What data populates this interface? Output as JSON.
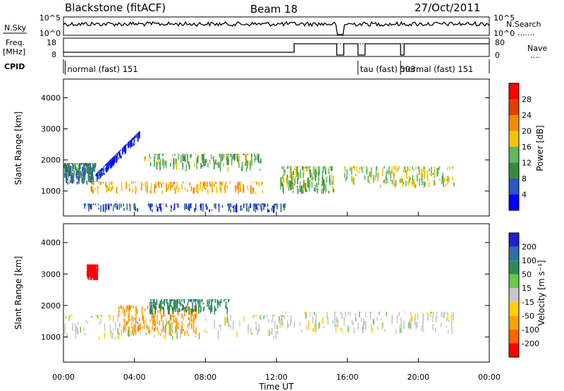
{
  "header": {
    "radar": "Blackstone (fitACF)",
    "beam": "Beam 18",
    "date": "27/Oct/2011"
  },
  "top_panels": {
    "noise_left": "N.Sky",
    "noise_right": "N.Search",
    "noise_ticks": [
      "10^5",
      "10^0"
    ],
    "freq_left_1": "Freq.",
    "freq_left_2": "[MHz]",
    "freq_ticks": [
      "18",
      "8"
    ],
    "nave_right": "Nave",
    "nave_ticks": [
      "80",
      "0"
    ],
    "cpid_label": "CPID"
  },
  "modes": [
    {
      "label": "normal (fast) 151",
      "start_h": 0.1
    },
    {
      "label": "tau (fast) 503",
      "start_h": 16.6
    },
    {
      "label": "normal (fast) 151",
      "start_h": 19.0
    }
  ],
  "colors": {
    "power": [
      "#0000ff",
      "#2a58c0",
      "#3a8a3a",
      "#5fb85f",
      "#f5c400",
      "#f08c00",
      "#e04000",
      "#ff0000"
    ],
    "velocity": [
      "#ff0000",
      "#ff6400",
      "#ffa000",
      "#ffd100",
      "#c8c8c8",
      "#6ac84a",
      "#2e8b57",
      "#2e70b0",
      "#2020d0"
    ]
  },
  "chart_data": [
    {
      "type": "heatmap",
      "name": "power",
      "xlabel": "Time UT",
      "ylabel": "Slant Range [km]",
      "x_ticks": [
        "00:00",
        "04:00",
        "08:00",
        "12:00",
        "16:00",
        "20:00",
        "00:00"
      ],
      "y_ticks": [
        "1000",
        "2000",
        "3000",
        "4000"
      ],
      "xlim": [
        0,
        24
      ],
      "ylim": [
        200,
        4600
      ],
      "colorbar": {
        "label": "Power [dB]",
        "ticks": [
          "4",
          "8",
          "12",
          "16",
          "20",
          "24",
          "28"
        ],
        "range": [
          0,
          32
        ]
      },
      "features": [
        {
          "desc": "early band",
          "t": [
            0.0,
            1.8
          ],
          "r": [
            1200,
            1900
          ],
          "level": 10
        },
        {
          "desc": "rising streak",
          "t": [
            1.8,
            4.3
          ],
          "r_start": 1400,
          "r_end": 2800,
          "level": 6
        },
        {
          "desc": "strong main band",
          "t": [
            1.5,
            11.2
          ],
          "r": [
            900,
            1300
          ],
          "level": 22
        },
        {
          "desc": "upper band",
          "t": [
            4.5,
            11.2
          ],
          "r": [
            1600,
            2200
          ],
          "level": 15
        },
        {
          "desc": "near-range band",
          "t": [
            1.0,
            12.5
          ],
          "r": [
            300,
            600
          ],
          "level": 8
        },
        {
          "desc": "post-midday band",
          "t": [
            12.2,
            15.2
          ],
          "r": [
            900,
            1800
          ],
          "level": 16
        },
        {
          "desc": "afternoon band",
          "t": [
            15.8,
            22.0
          ],
          "r": [
            1100,
            1800
          ],
          "level": 18
        }
      ]
    },
    {
      "type": "heatmap",
      "name": "velocity",
      "xlabel": "Time UT",
      "ylabel": "Slant Range [km]",
      "x_ticks": [
        "00:00",
        "04:00",
        "08:00",
        "12:00",
        "16:00",
        "20:00",
        "00:00"
      ],
      "y_ticks": [
        "1000",
        "2000",
        "3000",
        "4000"
      ],
      "xlim": [
        0,
        24
      ],
      "ylim": [
        200,
        4600
      ],
      "colorbar": {
        "label": "Velocity [m s⁻¹]",
        "ticks": [
          "200",
          "100",
          "50",
          "15",
          "-15",
          "-50",
          "-100",
          "-200"
        ],
        "range": [
          -250,
          250
        ]
      },
      "features": [
        {
          "desc": "red patch",
          "t": [
            1.3,
            1.9
          ],
          "r": [
            2800,
            3300
          ],
          "v": -200
        },
        {
          "desc": "grey low band",
          "t": [
            0.0,
            12.5
          ],
          "r": [
            900,
            1700
          ],
          "v": 0
        },
        {
          "desc": "orange patch",
          "t": [
            3.0,
            7.5
          ],
          "r": [
            1000,
            2000
          ],
          "v": -60
        },
        {
          "desc": "green upper",
          "t": [
            4.8,
            9.3
          ],
          "r": [
            1700,
            2200
          ],
          "v": 60
        },
        {
          "desc": "afternoon grey",
          "t": [
            12.2,
            22.0
          ],
          "r": [
            1100,
            1800
          ],
          "v": 0
        }
      ]
    }
  ]
}
